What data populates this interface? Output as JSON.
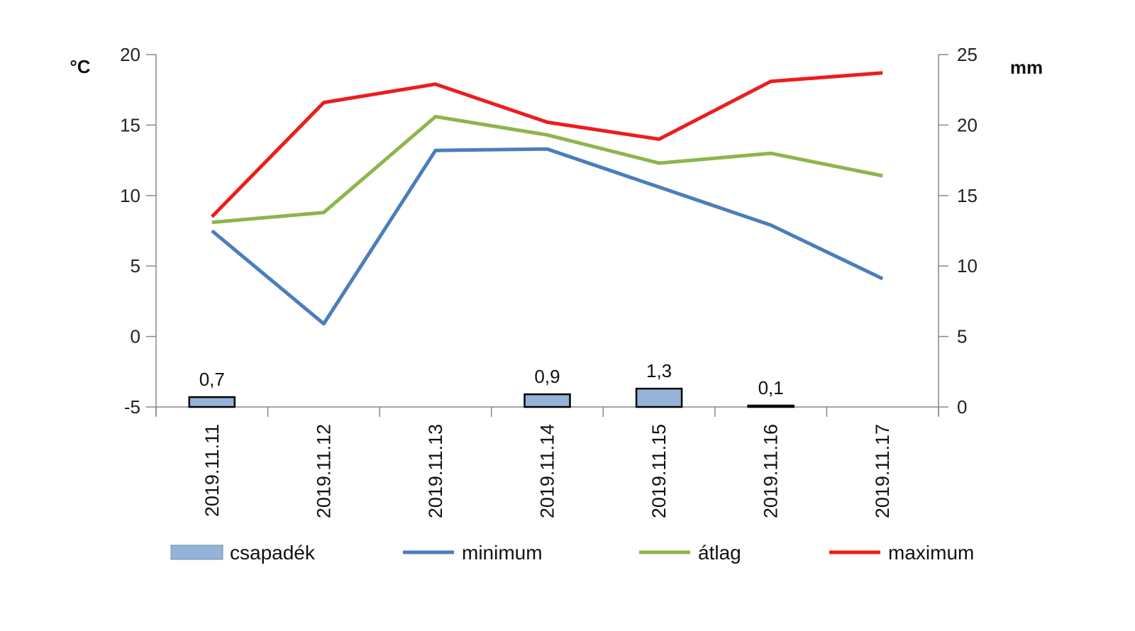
{
  "chart_data": {
    "type": "bar+line",
    "categories": [
      "2019.11.11",
      "2019.11.12",
      "2019.11.13",
      "2019.11.14",
      "2019.11.15",
      "2019.11.16",
      "2019.11.17"
    ],
    "y_left": {
      "unit": "°C",
      "ylim": [
        -5,
        20
      ],
      "ticks": [
        20,
        15,
        10,
        5,
        0,
        -5
      ],
      "tick_labels": [
        "20",
        "15",
        "10",
        "5",
        "0",
        "-5"
      ]
    },
    "y_right": {
      "unit": "mm",
      "ylim": [
        0,
        25
      ],
      "ticks": [
        25,
        20,
        15,
        10,
        5,
        0
      ],
      "tick_labels": [
        "25",
        "20",
        "15",
        "10",
        "5",
        "0"
      ]
    },
    "bars": {
      "name": "csapadék",
      "axis": "right",
      "color": "#95b3d7",
      "values": [
        0.7,
        0,
        0,
        0.9,
        1.3,
        0.1,
        0
      ],
      "labels": [
        "0,7",
        "",
        "",
        "0,9",
        "1,3",
        "0,1",
        ""
      ]
    },
    "series": [
      {
        "name": "minimum",
        "axis": "left",
        "color": "#4a7ebb",
        "values": [
          7.5,
          0.9,
          13.2,
          13.3,
          10.6,
          7.9,
          4.1
        ]
      },
      {
        "name": "átlag",
        "axis": "left",
        "color": "#8db54b",
        "values": [
          8.1,
          8.8,
          15.6,
          14.3,
          12.3,
          13.0,
          11.4
        ]
      },
      {
        "name": "maximum",
        "axis": "left",
        "color": "#ee1c1c",
        "values": [
          8.5,
          16.6,
          17.9,
          15.2,
          14.0,
          18.1,
          18.7
        ]
      }
    ],
    "legend": {
      "position": "bottom",
      "items": [
        "csapadék",
        "minimum",
        "átlag",
        "maximum"
      ]
    },
    "grid": false
  }
}
